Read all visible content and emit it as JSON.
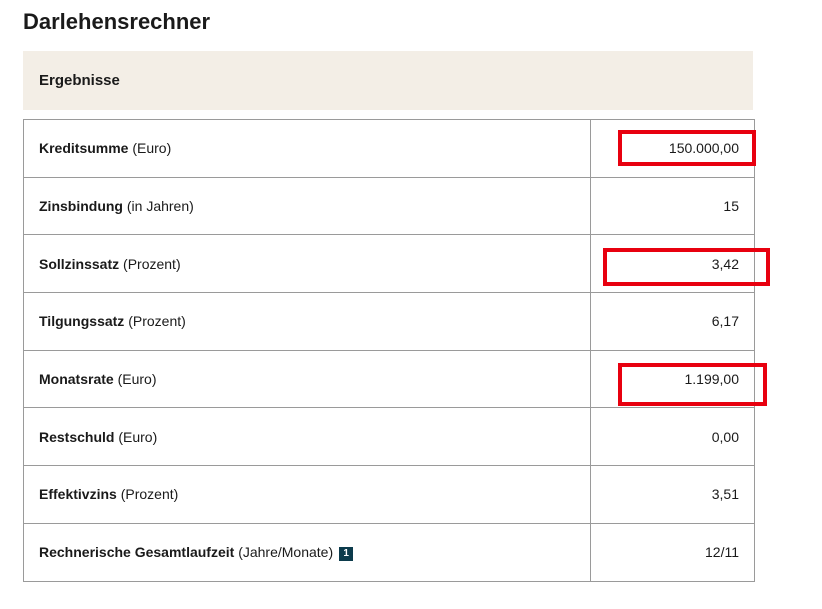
{
  "page": {
    "title": "Darlehensrechner"
  },
  "results": {
    "header": "Ergebnisse",
    "rows": [
      {
        "label": "Kreditsumme",
        "unit": "(Euro)",
        "value": "150.000,00"
      },
      {
        "label": "Zinsbindung",
        "unit": "(in Jahren)",
        "value": "15"
      },
      {
        "label": "Sollzinssatz",
        "unit": "(Prozent)",
        "value": "3,42"
      },
      {
        "label": "Tilgungssatz",
        "unit": "(Prozent)",
        "value": "6,17"
      },
      {
        "label": "Monatsrate",
        "unit": "(Euro)",
        "value": "1.199,00"
      },
      {
        "label": "Restschuld",
        "unit": "(Euro)",
        "value": "0,00"
      },
      {
        "label": "Effektivzins",
        "unit": "(Prozent)",
        "value": "3,51"
      },
      {
        "label": "Rechnerische Gesamtlaufzeit",
        "unit": "(Jahre/Monate)",
        "value": "12/11",
        "footnote": "1"
      }
    ]
  },
  "colors": {
    "header_background": "#f3eee6",
    "highlight": "#e8000f",
    "footnote_badge": "#0c3b4c"
  }
}
